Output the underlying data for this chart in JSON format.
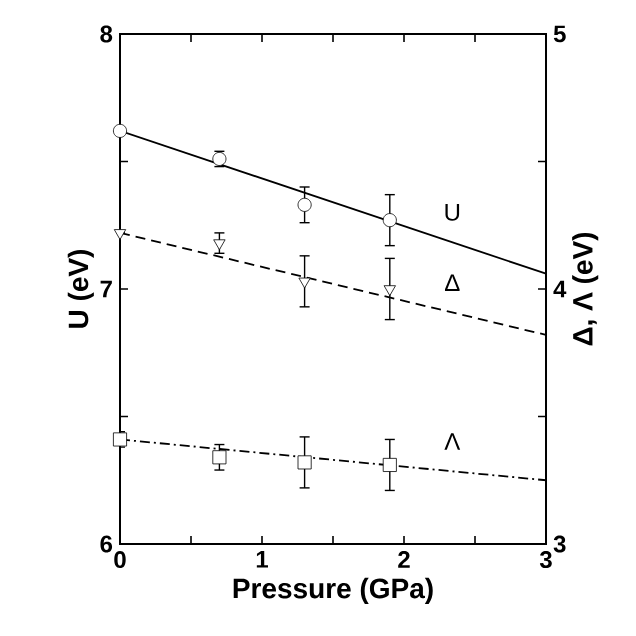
{
  "chart_data": {
    "type": "scatter",
    "xlabel": "Pressure   (GPa)",
    "ylabel": "U (eV)",
    "y2label": "Δ, Λ (eV)",
    "xlim": [
      0,
      3
    ],
    "xticks": [
      0,
      {
        "value": 0.5,
        "label": null
      },
      1,
      {
        "value": 1.5,
        "label": null
      },
      2,
      {
        "value": 2.5,
        "label": null
      },
      3
    ],
    "ylim": [
      6,
      8
    ],
    "yticks": [
      6,
      {
        "value": 6.5,
        "label": null
      },
      7,
      {
        "value": 7.5,
        "label": null
      },
      8
    ],
    "y2lim": [
      3,
      5
    ],
    "y2ticks": [
      3,
      {
        "value": 3.5,
        "label": null
      },
      4,
      {
        "value": 4.5,
        "label": null
      },
      5
    ],
    "series": [
      {
        "axis": "y",
        "marker": "circle",
        "color": "#000000",
        "x": [
          0,
          0.7,
          1.3,
          1.9
        ],
        "values": [
          7.62,
          7.51,
          7.33,
          7.27
        ],
        "errors": [
          null,
          0.03,
          0.07,
          0.1
        ]
      },
      {
        "type": "line",
        "name": "U",
        "axis": "y",
        "line_style": "solid",
        "color": "#000000",
        "x": [
          0,
          3
        ],
        "values": [
          7.62,
          7.06
        ]
      },
      {
        "axis": "y2",
        "marker": "triangle",
        "color": "#000000",
        "x": [
          0,
          0.7,
          1.3,
          1.9
        ],
        "values": [
          4.22,
          4.18,
          4.03,
          4.0
        ],
        "errors": [
          null,
          0.04,
          0.1,
          0.12
        ]
      },
      {
        "type": "line",
        "name": "Δ",
        "axis": "y2",
        "line_style": "dashed",
        "color": "#000000",
        "x": [
          0,
          3
        ],
        "values": [
          4.22,
          3.82
        ]
      },
      {
        "axis": "y2",
        "marker": "square",
        "color": "#000000",
        "x": [
          0,
          0.7,
          1.3,
          1.9
        ],
        "values": [
          3.41,
          3.34,
          3.32,
          3.31
        ],
        "errors": [
          0.03,
          0.05,
          0.1,
          0.1
        ]
      },
      {
        "type": "line",
        "name": "Λ",
        "axis": "y2",
        "line_style": "dashdot",
        "color": "#000000",
        "x": [
          0,
          3
        ],
        "values": [
          3.41,
          3.25
        ]
      }
    ]
  }
}
